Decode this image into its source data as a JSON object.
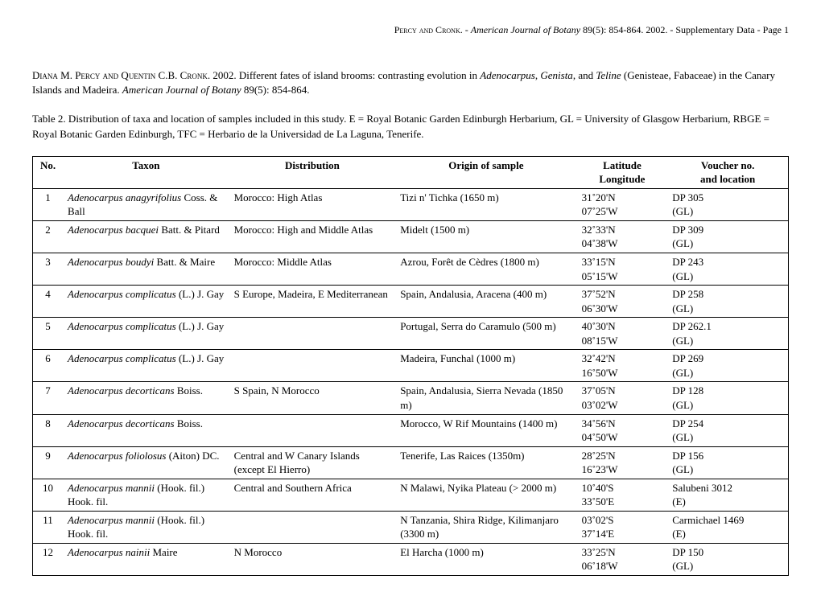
{
  "header": {
    "authors_sc": "Percy and Cronk",
    "journal": "American Journal of Botany",
    "issue": " 89(5): 854-864. 2002. - Supplementary Data - Page 1"
  },
  "citation": {
    "authors_sc": "Diana M. Percy and Quentin C.B. Cronk",
    "year_title": ".  2002.  Different fates of island brooms: contrasting evolution in ",
    "g1": "Adenocarpus",
    "comma1": ", ",
    "g2": "Genista",
    "and": ", and ",
    "g3": "Teline",
    "tail1": " (Genisteae, Fabaceae) in the Canary Islands and Madeira.  ",
    "journal": "American Journal of Botany",
    "tail2": " 89(5): 854-864."
  },
  "caption": "Table 2. Distribution of taxa and location of samples included in this study. E = Royal Botanic Garden Edinburgh Herbarium, GL = University of Glasgow Herbarium, RBGE = Royal Botanic Garden Edinburgh, TFC = Herbario de la Universidad de La Laguna, Tenerife.",
  "columns": {
    "no": "No.",
    "taxon": "Taxon",
    "distr": "Distribution",
    "orig": "Origin of sample",
    "lat1": "Latitude",
    "lat2": "Longitude",
    "vouch1": "Voucher no.",
    "vouch2": "and location"
  },
  "rows": [
    {
      "no": "1",
      "taxon_it": "Adenocarpus anagyrifolius",
      "taxon_auth": " Coss. & Ball",
      "distr": "Morocco: High Atlas",
      "orig": "Tizi n' Tichka (1650 m)",
      "lat": "31˚20'N 07˚25'W",
      "vouch": "DP 305 (GL)"
    },
    {
      "no": "2",
      "taxon_it": "Adenocarpus bacquei",
      "taxon_auth": " Batt. & Pitard",
      "distr": "Morocco: High and Middle Atlas",
      "orig": "Midelt (1500 m)",
      "lat": "32˚33'N 04˚38'W",
      "vouch": "DP 309 (GL)"
    },
    {
      "no": "3",
      "taxon_it": "Adenocarpus boudyi",
      "taxon_auth": " Batt. & Maire",
      "distr": "Morocco: Middle Atlas",
      "orig": "Azrou, Forêt de Cèdres (1800 m)",
      "lat": "33˚15'N 05˚15'W",
      "vouch": "DP 243 (GL)"
    },
    {
      "no": "4",
      "taxon_it": "Adenocarpus complicatus",
      "taxon_auth": " (L.) J. Gay",
      "distr": "S Europe, Madeira, E Mediterranean",
      "orig": "Spain, Andalusia, Aracena (400 m)",
      "lat": "37˚52'N 06˚30'W",
      "vouch": "DP 258 (GL)"
    },
    {
      "no": "5",
      "taxon_it": "Adenocarpus complicatus",
      "taxon_auth": " (L.) J. Gay",
      "distr": "",
      "orig": "Portugal, Serra do Caramulo (500 m)",
      "lat": "40˚30'N 08˚15'W",
      "vouch": "DP 262.1 (GL)"
    },
    {
      "no": "6",
      "taxon_it": "Adenocarpus complicatus",
      "taxon_auth": " (L.) J. Gay",
      "distr": "",
      "orig": "Madeira, Funchal (1000 m)",
      "lat": "32˚42'N 16˚50'W",
      "vouch": "DP 269 (GL)"
    },
    {
      "no": "7",
      "taxon_it": "Adenocarpus decorticans",
      "taxon_auth": " Boiss.",
      "distr": "S Spain, N Morocco",
      "orig": "Spain, Andalusia, Sierra Nevada (1850 m)",
      "lat": "37˚05'N 03˚02'W",
      "vouch": "DP 128 (GL)"
    },
    {
      "no": "8",
      "taxon_it": "Adenocarpus decorticans",
      "taxon_auth": " Boiss.",
      "distr": "",
      "orig": "Morocco, W Rif Mountains (1400 m)",
      "lat": "34˚56'N 04˚50'W",
      "vouch": "DP 254 (GL)"
    },
    {
      "no": "9",
      "taxon_it": "Adenocarpus foliolosus",
      "taxon_auth": " (Aiton) DC.",
      "distr": "Central and W Canary Islands (except El Hierro)",
      "orig": "Tenerife, Las Raices (1350m)",
      "lat": "28˚25'N 16˚23'W",
      "vouch": "DP 156 (GL)"
    },
    {
      "no": "10",
      "taxon_it": "Adenocarpus mannii",
      "taxon_auth": " (Hook. fil.) Hook. fil.",
      "distr": "Central and Southern Africa",
      "orig": "N Malawi, Nyika Plateau (> 2000 m)",
      "lat": "10˚40'S 33˚50'E",
      "vouch": "Salubeni 3012 (E)"
    },
    {
      "no": "11",
      "taxon_it": "Adenocarpus mannii",
      "taxon_auth": " (Hook. fil.) Hook. fil.",
      "distr": "",
      "orig": "N Tanzania, Shira Ridge, Kilimanjaro (3300 m)",
      "lat": "03˚02'S 37˚14'E",
      "vouch": "Carmichael 1469 (E)"
    },
    {
      "no": "12",
      "taxon_it": "Adenocarpus nainii",
      "taxon_auth": " Maire",
      "distr": "N Morocco",
      "orig": "El Harcha (1000 m)",
      "lat": "33˚25'N 06˚18'W",
      "vouch": "DP 150 (GL)"
    }
  ]
}
